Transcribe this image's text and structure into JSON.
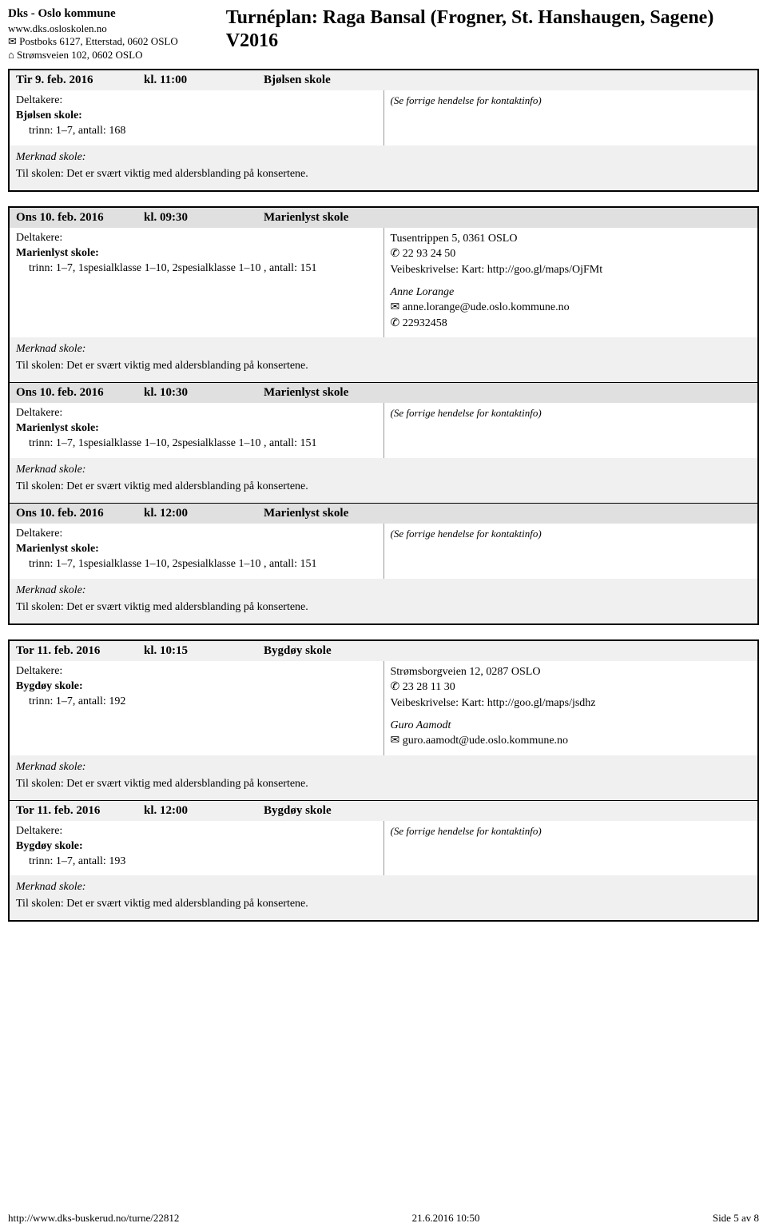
{
  "org": {
    "name": "Dks - Oslo kommune",
    "web": "www.dks.osloskolen.no",
    "mail": "✉ Postboks 6127, Etterstad, 0602 OSLO",
    "addr": "⌂ Strømsveien 102, 0602 OSLO"
  },
  "title_line1": "Turnéplan: Raga Bansal (Frogner, St. Hanshaugen, Sagene)",
  "title_line2": "V2016",
  "labels": {
    "participants": "Deltakere:",
    "note": "Merknad skole:",
    "ref": "(Se forrige hendelse for kontaktinfo)"
  },
  "note_common": "Til skolen: Det er svært viktig med aldersblanding på konsertene.",
  "groups": [
    {
      "events": [
        {
          "hdr_light": true,
          "date": "Tir 9. feb. 2016",
          "time": "kl. 11:00",
          "venue": "Bjølsen skole",
          "school": "Bjølsen skole:",
          "line": "trinn: 1–7, antall: 168",
          "right_type": "ref"
        }
      ]
    },
    {
      "events": [
        {
          "hdr_light": false,
          "date": "Ons 10. feb. 2016",
          "time": "kl. 09:30",
          "venue": "Marienlyst skole",
          "school": "Marienlyst skole:",
          "line": "trinn: 1–7, 1spesialklasse 1–10, 2spesialklasse 1–10 , antall: 151",
          "right_type": "contact",
          "contact": {
            "addr": "Tusentrippen 5, 0361 OSLO",
            "phone": "✆ 22 93 24 50",
            "route": "Veibeskrivelse: Kart: http://goo.gl/maps/OjFMt",
            "name": "Anne Lorange",
            "email": "✉ anne.lorange@ude.oslo.kommune.no",
            "phone2": "✆ 22932458"
          }
        },
        {
          "hdr_light": false,
          "date": "Ons 10. feb. 2016",
          "time": "kl. 10:30",
          "venue": "Marienlyst skole",
          "school": "Marienlyst skole:",
          "line": "trinn: 1–7, 1spesialklasse 1–10, 2spesialklasse 1–10 , antall: 151",
          "right_type": "ref"
        },
        {
          "hdr_light": false,
          "date": "Ons 10. feb. 2016",
          "time": "kl. 12:00",
          "venue": "Marienlyst skole",
          "school": "Marienlyst skole:",
          "line": "trinn: 1–7, 1spesialklasse 1–10, 2spesialklasse 1–10 , antall: 151",
          "right_type": "ref"
        }
      ]
    },
    {
      "events": [
        {
          "hdr_light": true,
          "date": "Tor 11. feb. 2016",
          "time": "kl. 10:15",
          "venue": "Bygdøy skole",
          "school": "Bygdøy skole:",
          "line": "trinn: 1–7, antall: 192",
          "right_type": "contact",
          "contact": {
            "addr": "Strømsborgveien 12, 0287 OSLO",
            "phone": "✆ 23 28 11 30",
            "route": "Veibeskrivelse: Kart: http://goo.gl/maps/jsdhz",
            "name": "Guro Aamodt",
            "email": "✉ guro.aamodt@ude.oslo.kommune.no",
            "phone2": ""
          }
        },
        {
          "hdr_light": true,
          "date": "Tor 11. feb. 2016",
          "time": "kl. 12:00",
          "venue": "Bygdøy skole",
          "school": "Bygdøy skole:",
          "line": "trinn: 1–7, antall: 193",
          "right_type": "ref"
        }
      ]
    }
  ],
  "footer": {
    "left": "http://www.dks-buskerud.no/turne/22812",
    "center": "21.6.2016 10:50",
    "right": "Side 5 av 8"
  }
}
